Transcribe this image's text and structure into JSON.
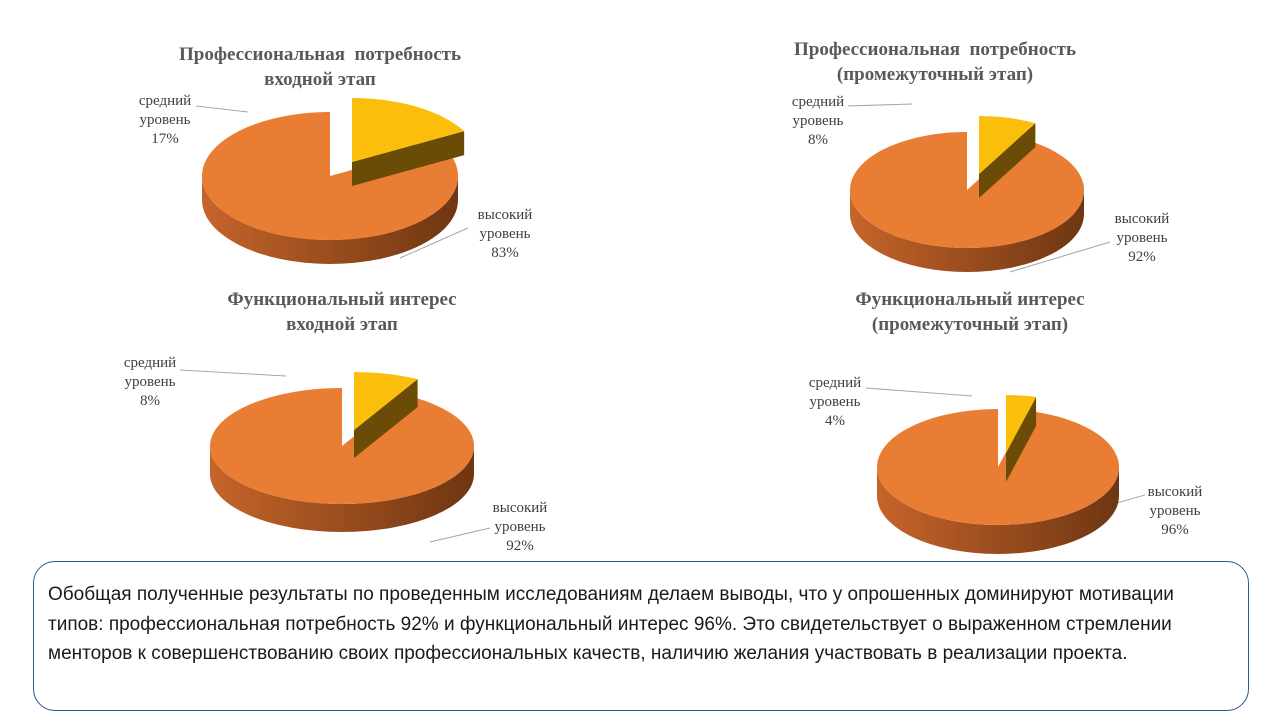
{
  "chart_data": [
    {
      "type": "pie",
      "title": "Профессиональная  потребность\nвходной этап",
      "slices": [
        {
          "label": "средний\nуровень",
          "value": 17,
          "display": "17%"
        },
        {
          "label": "высокий\nуровень",
          "value": 83,
          "display": "83%"
        }
      ]
    },
    {
      "type": "pie",
      "title": "Профессиональная  потребность\n(промежуточный этап)",
      "slices": [
        {
          "label": "средний\nуровень",
          "value": 8,
          "display": "8%"
        },
        {
          "label": "высокий\nуровень",
          "value": 92,
          "display": "92%"
        }
      ]
    },
    {
      "type": "pie",
      "title": "Функциональный интерес\nвходной этап",
      "slices": [
        {
          "label": "средний\nуровень",
          "value": 8,
          "display": "8%"
        },
        {
          "label": "высокий\nуровень",
          "value": 92,
          "display": "92%"
        }
      ]
    },
    {
      "type": "pie",
      "title": "Функциональный интерес\n(промежуточный этап)",
      "slices": [
        {
          "label": "средний\nуровень",
          "value": 4,
          "display": "4%"
        },
        {
          "label": "высокий\nуровень",
          "value": 96,
          "display": "96%"
        }
      ]
    }
  ],
  "colors": {
    "high_top": "#e97d34",
    "high_side_light": "#c6642a",
    "high_side_dark": "#6e3612",
    "mid_top": "#fbbf0b",
    "mid_side": "#6a4c07",
    "border": "#2e5597"
  },
  "summary": {
    "text": "Обобщая полученные результаты по проведенным исследованиям  делаем выводы, что у опрошенных доминируют мотивации типов: профессиональная потребность 92% и функциональный интерес 96%. Это свидетельствует о выраженном стремлении менторов к совершенствованию своих профессиональных качеств, наличию желания участвовать в реализации проекта."
  }
}
